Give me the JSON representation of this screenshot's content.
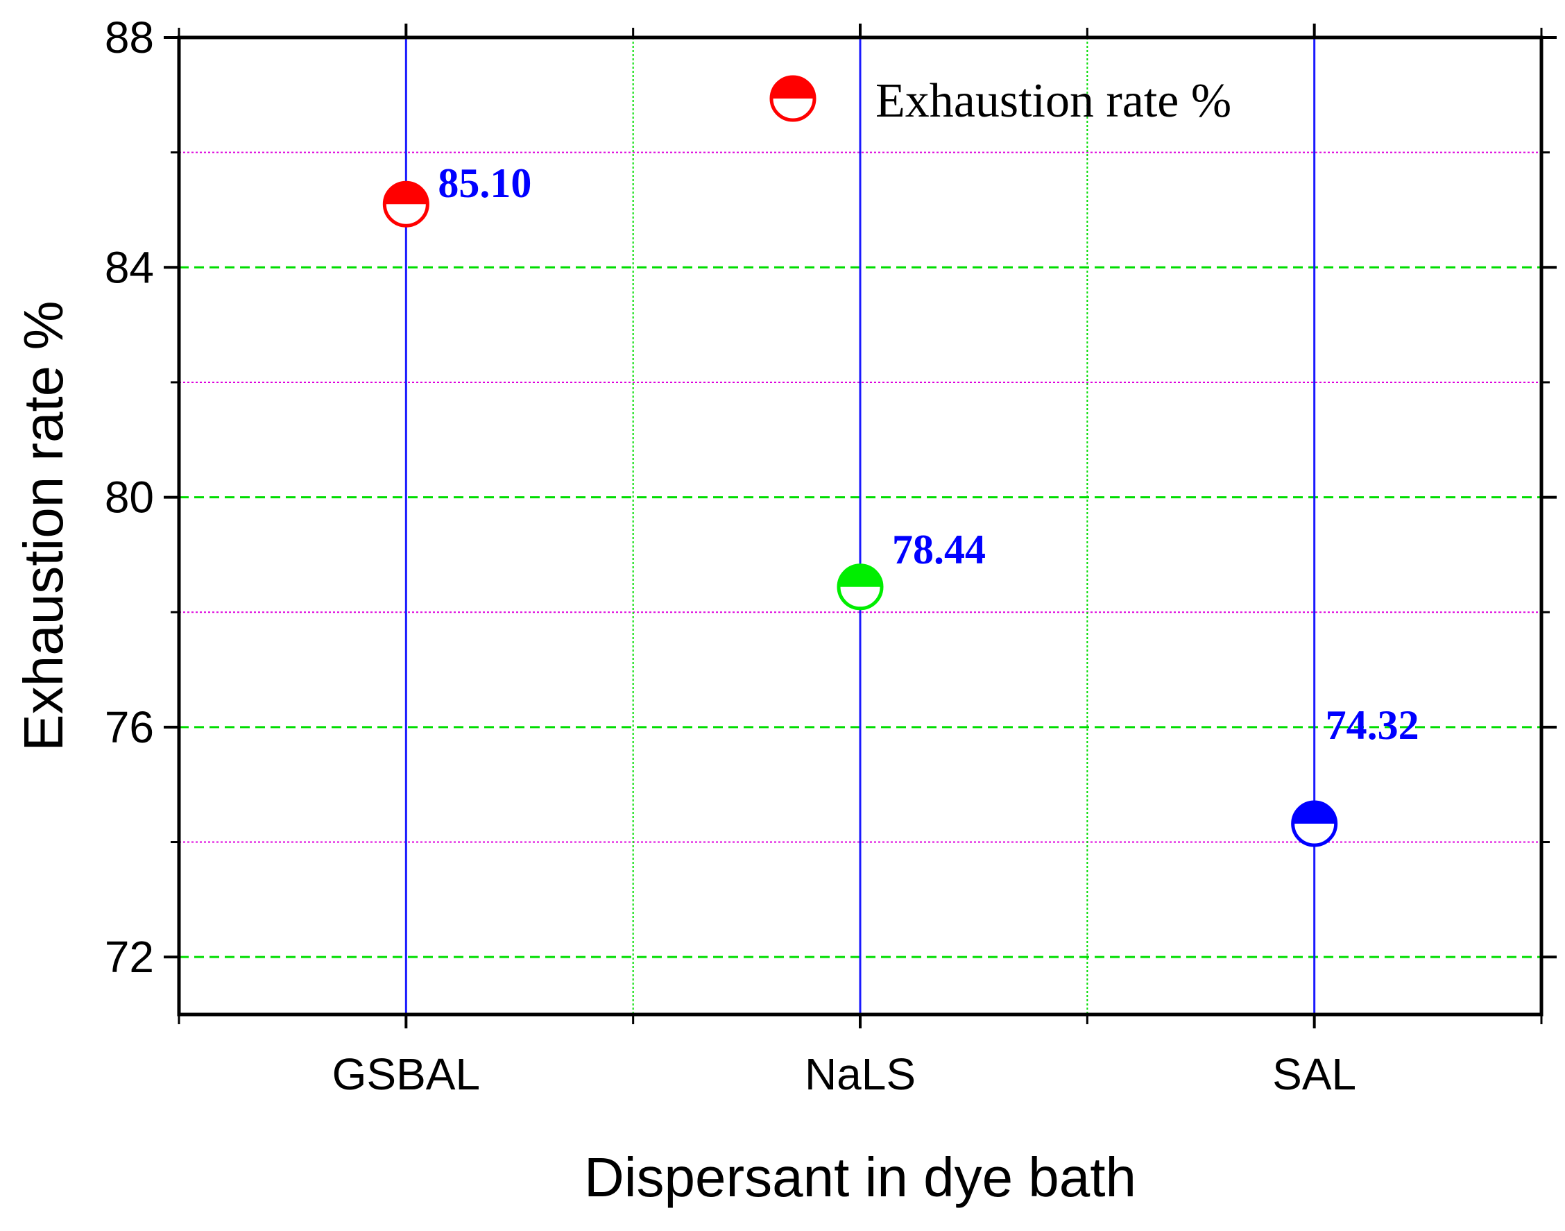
{
  "chart_data": {
    "type": "scatter",
    "title": "",
    "xlabel": "Dispersant in dye bath",
    "ylabel": "Exhaustion rate %",
    "categories": [
      "GSBAL",
      "NaLS",
      "SAL"
    ],
    "series": [
      {
        "name": "Exhaustion rate %",
        "values": [
          85.1,
          78.44,
          74.32
        ],
        "labels": [
          "85.10",
          "78.44",
          "74.32"
        ],
        "marker_colors": [
          "#ff0000",
          "#00ee00",
          "#0000ff"
        ]
      }
    ],
    "ylim": [
      71,
      88
    ],
    "yticks": [
      72,
      76,
      80,
      84,
      88
    ],
    "yticks_minor": [
      74,
      78,
      82,
      86
    ],
    "ytick_labels": [
      "72",
      "76",
      "80",
      "84",
      "88"
    ],
    "grid": true,
    "legend": "top-center",
    "drop_lines": true,
    "colors": {
      "drop_line": "#1a1aff",
      "label": "#0000ff",
      "major_grid": "#00dd00",
      "minor_grid": "#dd00dd",
      "legend_marker": "#ff0000"
    }
  }
}
